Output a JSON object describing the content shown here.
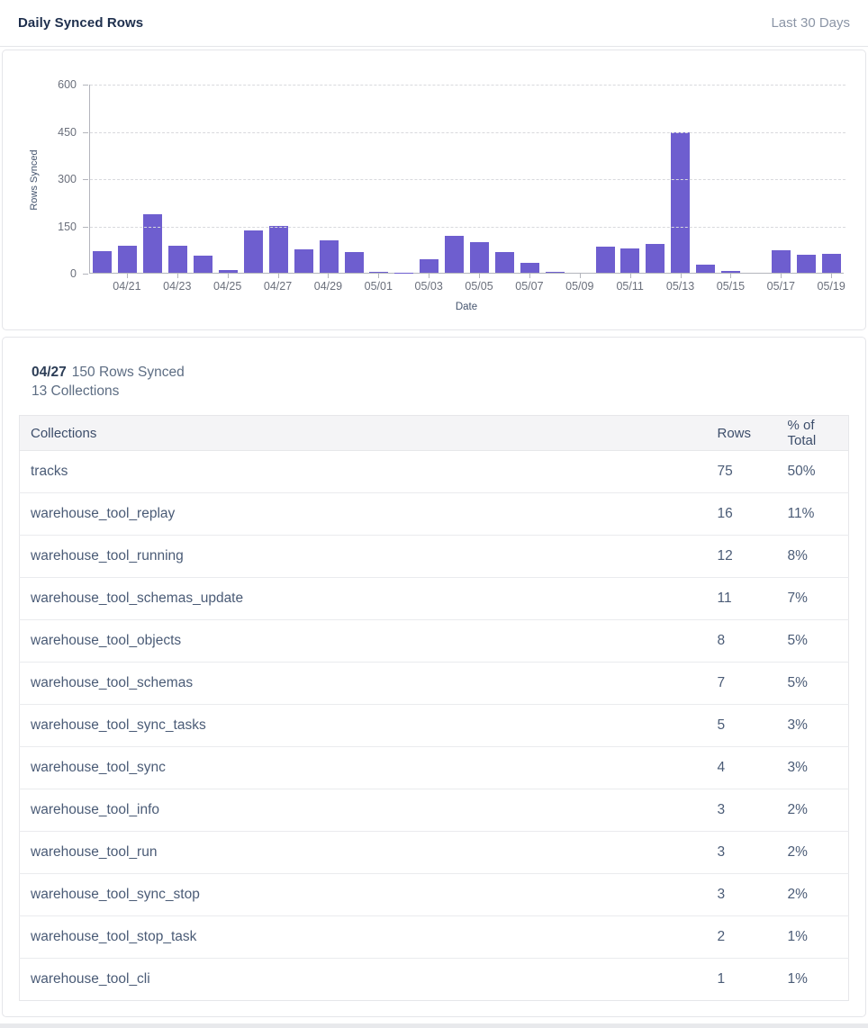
{
  "header": {
    "title": "Daily Synced Rows",
    "range_label": "Last 30 Days"
  },
  "chart_data": {
    "type": "bar",
    "title": "Daily Synced Rows",
    "xlabel": "Date",
    "ylabel": "Rows Synced",
    "ylim": [
      0,
      600
    ],
    "yticks": [
      0,
      150,
      300,
      450,
      600
    ],
    "grid": "horizontal-dashed",
    "legend": "none",
    "bar_color": "#6e5ecf",
    "categories": [
      "04/20",
      "04/21",
      "04/22",
      "04/23",
      "04/24",
      "04/25",
      "04/26",
      "04/27",
      "04/28",
      "04/29",
      "04/30",
      "05/01",
      "05/02",
      "05/03",
      "05/04",
      "05/05",
      "05/06",
      "05/07",
      "05/08",
      "05/09",
      "05/10",
      "05/11",
      "05/12",
      "05/13",
      "05/14",
      "05/15",
      "05/16",
      "05/17",
      "05/18",
      "05/19"
    ],
    "values": [
      70,
      85,
      185,
      85,
      55,
      10,
      133,
      150,
      73,
      103,
      67,
      2,
      1,
      44,
      118,
      96,
      66,
      31,
      3,
      0,
      83,
      76,
      91,
      445,
      27,
      6,
      0,
      71,
      57,
      59
    ],
    "x_tick_every": 2
  },
  "detail": {
    "date": "04/27",
    "rows_text": "150 Rows Synced",
    "collections_text": "13 Collections"
  },
  "table": {
    "columns": [
      "Collections",
      "Rows",
      "% of Total"
    ],
    "rows": [
      {
        "name": "tracks",
        "rows": "75",
        "pct": "50%"
      },
      {
        "name": "warehouse_tool_replay",
        "rows": "16",
        "pct": "11%"
      },
      {
        "name": "warehouse_tool_running",
        "rows": "12",
        "pct": "8%"
      },
      {
        "name": "warehouse_tool_schemas_update",
        "rows": "11",
        "pct": "7%"
      },
      {
        "name": "warehouse_tool_objects",
        "rows": "8",
        "pct": "5%"
      },
      {
        "name": "warehouse_tool_schemas",
        "rows": "7",
        "pct": "5%"
      },
      {
        "name": "warehouse_tool_sync_tasks",
        "rows": "5",
        "pct": "3%"
      },
      {
        "name": "warehouse_tool_sync",
        "rows": "4",
        "pct": "3%"
      },
      {
        "name": "warehouse_tool_info",
        "rows": "3",
        "pct": "2%"
      },
      {
        "name": "warehouse_tool_run",
        "rows": "3",
        "pct": "2%"
      },
      {
        "name": "warehouse_tool_sync_stop",
        "rows": "3",
        "pct": "2%"
      },
      {
        "name": "warehouse_tool_stop_task",
        "rows": "2",
        "pct": "1%"
      },
      {
        "name": "warehouse_tool_cli",
        "rows": "1",
        "pct": "1%"
      }
    ]
  }
}
